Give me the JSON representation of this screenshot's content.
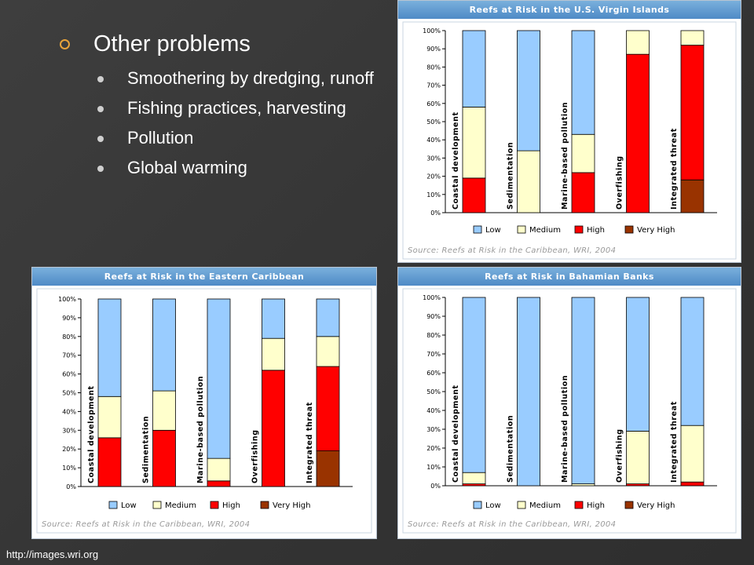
{
  "slide": {
    "heading": "Other problems",
    "bullets": [
      "Smoothering by dredging, runoff",
      "Fishing practices, harvesting",
      "Pollution",
      "Global warming"
    ],
    "footer_url": "http://images.wri.org"
  },
  "colors": {
    "Low": "#99ccff",
    "Medium": "#ffffcc",
    "High": "#ff0000",
    "Very High": "#993300"
  },
  "chart_data": [
    {
      "type": "bar",
      "stacked": true,
      "title": "Reefs at Risk in the U.S. Virgin Islands",
      "source": "Source: Reefs at Risk in the Caribbean, WRI, 2004",
      "categories": [
        "Coastal development",
        "Sedimentation",
        "Marine-based pollution",
        "Overfishing",
        "Integrated threat"
      ],
      "yticks": [
        "0%",
        "10%",
        "20%",
        "30%",
        "40%",
        "50%",
        "60%",
        "70%",
        "80%",
        "90%",
        "100%"
      ],
      "ylim": [
        0,
        100
      ],
      "legend": [
        "Low",
        "Medium",
        "High",
        "Very High"
      ],
      "series": [
        {
          "name": "Very High",
          "values": [
            0,
            0,
            0,
            0,
            18
          ]
        },
        {
          "name": "High",
          "values": [
            19,
            0,
            22,
            87,
            74
          ]
        },
        {
          "name": "Medium",
          "values": [
            39,
            34,
            21,
            13,
            8
          ]
        },
        {
          "name": "Low",
          "values": [
            42,
            66,
            57,
            0,
            0
          ]
        }
      ]
    },
    {
      "type": "bar",
      "stacked": true,
      "title": "Reefs at Risk in the Eastern Caribbean",
      "source": "Source: Reefs at Risk in the Caribbean, WRI, 2004",
      "categories": [
        "Coastal development",
        "Sedimentation",
        "Marine-based pollution",
        "Overfishing",
        "Integrated threat"
      ],
      "yticks": [
        "0%",
        "10%",
        "20%",
        "30%",
        "40%",
        "50%",
        "60%",
        "70%",
        "80%",
        "90%",
        "100%"
      ],
      "ylim": [
        0,
        100
      ],
      "legend": [
        "Low",
        "Medium",
        "High",
        "Very High"
      ],
      "series": [
        {
          "name": "Very High",
          "values": [
            0,
            0,
            0,
            0,
            19
          ]
        },
        {
          "name": "High",
          "values": [
            26,
            30,
            3,
            62,
            45
          ]
        },
        {
          "name": "Medium",
          "values": [
            22,
            21,
            12,
            17,
            16
          ]
        },
        {
          "name": "Low",
          "values": [
            52,
            49,
            85,
            21,
            20
          ]
        }
      ]
    },
    {
      "type": "bar",
      "stacked": true,
      "title": "Reefs at Risk in Bahamian Banks",
      "source": "Source: Reefs at Risk in the Caribbean, WRI, 2004",
      "categories": [
        "Coastal development",
        "Sedimentation",
        "Marine-based pollution",
        "Overfishing",
        "Integrated threat"
      ],
      "yticks": [
        "0%",
        "10%",
        "20%",
        "30%",
        "40%",
        "50%",
        "60%",
        "70%",
        "80%",
        "90%",
        "100%"
      ],
      "ylim": [
        0,
        100
      ],
      "legend": [
        "Low",
        "Medium",
        "High",
        "Very High"
      ],
      "series": [
        {
          "name": "Very High",
          "values": [
            0,
            0,
            0,
            0,
            0
          ]
        },
        {
          "name": "High",
          "values": [
            1,
            0,
            0,
            1,
            2
          ]
        },
        {
          "name": "Medium",
          "values": [
            6,
            0,
            1,
            28,
            30
          ]
        },
        {
          "name": "Low",
          "values": [
            93,
            100,
            99,
            71,
            68
          ]
        }
      ]
    }
  ]
}
